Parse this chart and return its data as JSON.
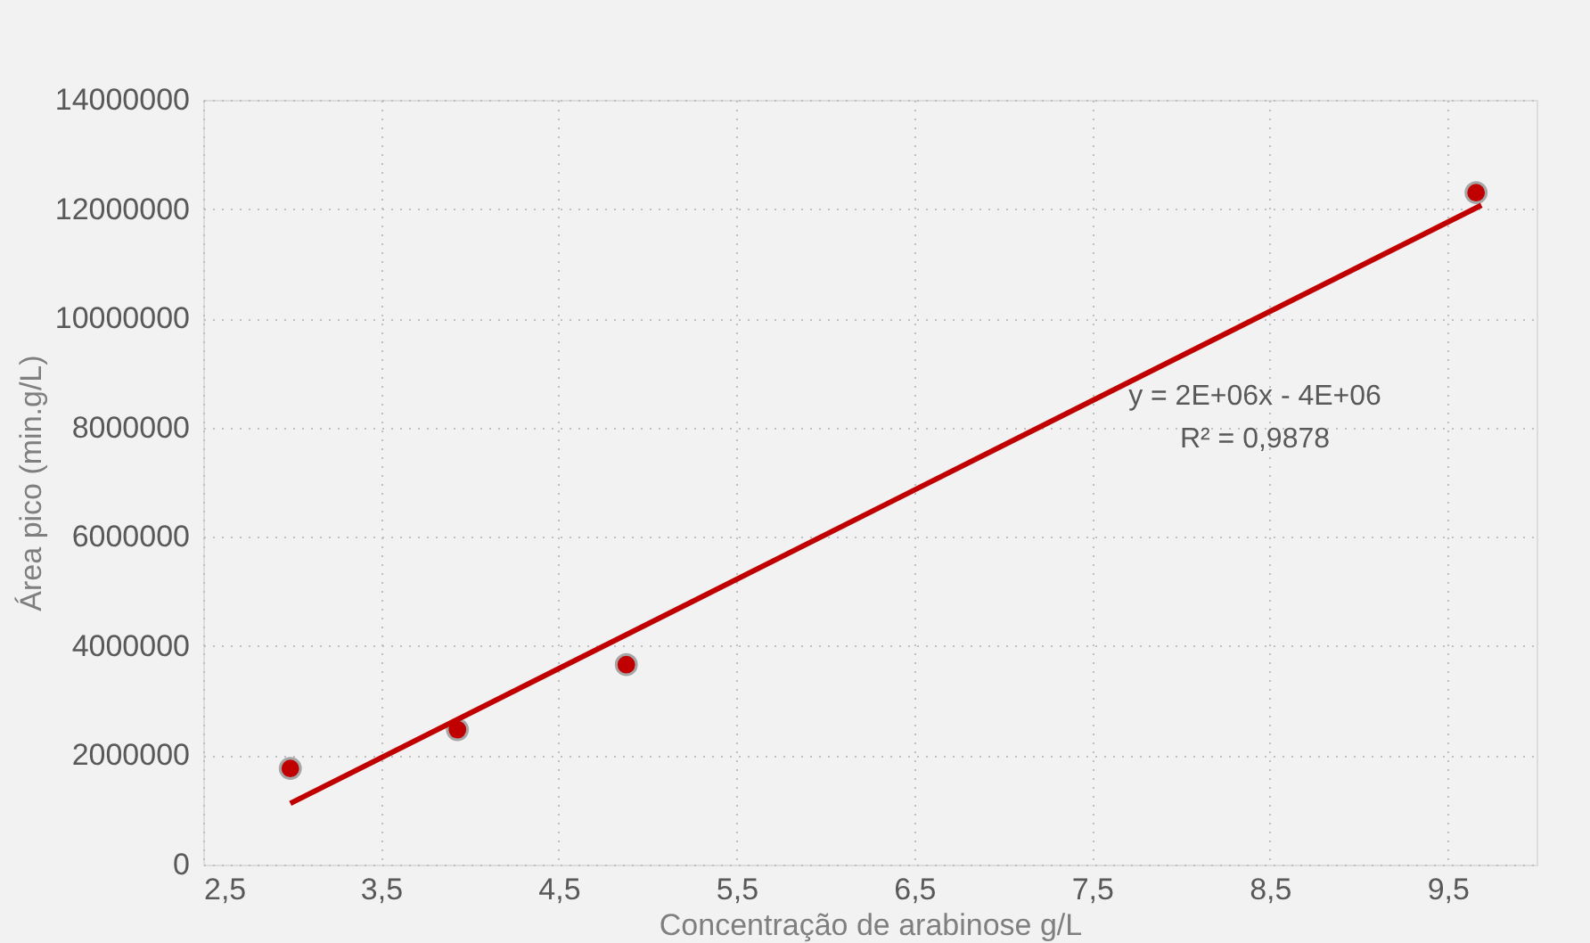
{
  "chart_data": {
    "type": "scatter",
    "xlabel": "Concentração de arabinose g/L",
    "ylabel": "Área pico (min.g/L)",
    "x": [
      2.99,
      3.93,
      4.88,
      9.66
    ],
    "series": [
      {
        "color": "#c00000",
        "values": [
          1760000,
          2470000,
          3660000,
          12300000
        ],
        "marker": "circle"
      },
      {
        "type": "line",
        "color": "#c00000",
        "x": [
          2.99,
          9.69
        ],
        "values": [
          1120000,
          12070000
        ],
        "marker": "none"
      }
    ],
    "xlim": [
      2.5,
      10
    ],
    "xticks": [
      {
        "value": 2.5,
        "label": "2,5"
      },
      {
        "value": 3.5,
        "label": "3,5"
      },
      {
        "value": 4.5,
        "label": "4,5"
      },
      {
        "value": 5.5,
        "label": "5,5"
      },
      {
        "value": 6.5,
        "label": "6,5"
      },
      {
        "value": 7.5,
        "label": "7,5"
      },
      {
        "value": 8.5,
        "label": "8,5"
      },
      {
        "value": 9.5,
        "label": "9,5"
      }
    ],
    "ylim": [
      0,
      14000000
    ],
    "yticks": [
      0,
      2000000,
      4000000,
      6000000,
      8000000,
      10000000,
      12000000,
      14000000
    ],
    "grid": true,
    "line_style": "solid",
    "annotations": [
      "y = 2E+06x - 4E+06",
      "R² = 0,9878"
    ]
  }
}
